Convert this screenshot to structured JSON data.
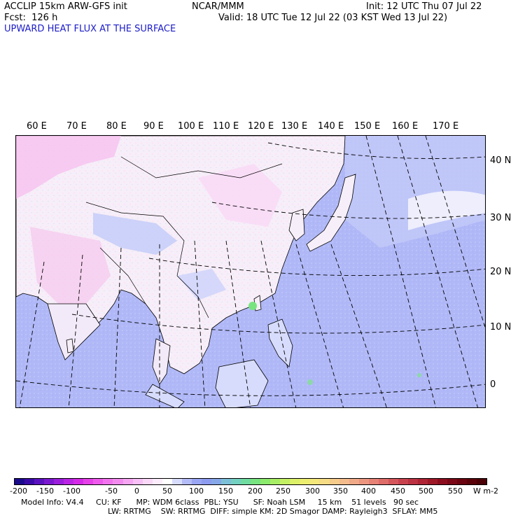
{
  "header": {
    "model": "ACCLIP 15km ARW-GFS init",
    "forecast": "Fcst:  126 h",
    "org": "NCAR/MMM",
    "init": "Init: 12 UTC Thu 07 Jul 22",
    "valid": "Valid: 18 UTC Tue 12 Jul 22 (03 KST Wed 13 Jul 22)",
    "field": "UPWARD HEAT FLUX AT THE SURFACE"
  },
  "map": {
    "lon_labels": [
      "60 E",
      "70 E",
      "80 E",
      "90 E",
      "100 E",
      "110 E",
      "120 E",
      "130 E",
      "140 E",
      "150 E",
      "160 E",
      "170 E"
    ],
    "lat_labels": [
      "40 N",
      "30 N",
      "20 N",
      "10 N",
      "0"
    ]
  },
  "colorbar": {
    "labels": [
      "-200",
      "-150",
      "-100",
      "-50",
      "0",
      "50",
      "100",
      "150",
      "200",
      "250",
      "300",
      "350",
      "400",
      "450",
      "500",
      "550"
    ],
    "units": "W m-2",
    "colors": [
      "#1a0a8c",
      "#3a0aa8",
      "#5a12c0",
      "#7a18d0",
      "#9a1edc",
      "#ba24e4",
      "#d42ae8",
      "#e640e8",
      "#ee5aec",
      "#f274ee",
      "#f48cf0",
      "#f6a6f2",
      "#f8c0f6",
      "#fad8f8",
      "#fcecfc",
      "#ffffff",
      "#d8dcfc",
      "#b4bcf8",
      "#9aa6f4",
      "#8e9cf0",
      "#86a8e8",
      "#7cc0d8",
      "#74d0c0",
      "#70dca0",
      "#78e480",
      "#8cea6c",
      "#a8ee64",
      "#c4f064",
      "#dcf068",
      "#ecee70",
      "#f4e87a",
      "#f6dc84",
      "#f6cc8a",
      "#f4bc8c",
      "#f0aa88",
      "#ec9680",
      "#e68276",
      "#de6c68",
      "#d4565a",
      "#c8424e",
      "#bc3242",
      "#ae2434",
      "#9e1828",
      "#8c0e1e",
      "#7a0816",
      "#6a0410",
      "#5a020a",
      "#4a0006"
    ]
  },
  "footer": {
    "line1": "Model Info: V4.4     CU: KF      MP: WDM 6class  PBL: YSU      SF: Noah LSM     15 km    51 levels   90 sec",
    "line2": "LW: RRTMG    SW: RRTMG  DIFF: simple KM: 2D Smagor DAMP: Rayleigh3  SFLAY: MM5"
  }
}
